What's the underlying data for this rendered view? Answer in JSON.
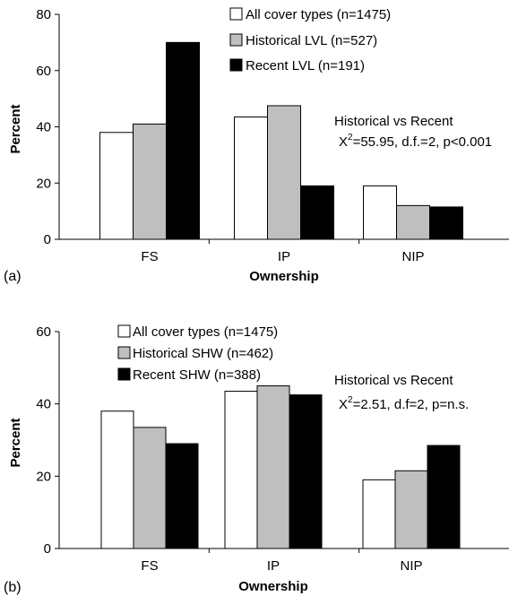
{
  "colors": {
    "all_cover": "#ffffff",
    "historical": "#bfbfbf",
    "recent": "#000000"
  },
  "chart_data": [
    {
      "type": "bar",
      "panel_label": "(a)",
      "xlabel": "Ownership",
      "ylabel": "Percent",
      "ylim": [
        0,
        80
      ],
      "yticks": [
        "0",
        "20",
        "40",
        "60",
        "80"
      ],
      "categories": [
        "FS",
        "IP",
        "NIP"
      ],
      "series": [
        {
          "name": "All cover types (n=1475)",
          "values": [
            38,
            43.5,
            19
          ]
        },
        {
          "name": "Historical LVL (n=527)",
          "values": [
            41,
            47.5,
            12
          ]
        },
        {
          "name": "Recent LVL (n=191)",
          "values": [
            70,
            19,
            11.5
          ]
        }
      ],
      "annotation": {
        "line1": "Historical vs Recent",
        "chi_symbol": "X",
        "chi_sup": "2",
        "stat": "=55.95, d.f.=2, p<0.001"
      },
      "legend_position": "top-center"
    },
    {
      "type": "bar",
      "panel_label": "(b)",
      "xlabel": "Ownership",
      "ylabel": "Percent",
      "ylim": [
        0,
        60
      ],
      "yticks": [
        "0",
        "20",
        "40",
        "60"
      ],
      "categories": [
        "FS",
        "IP",
        "NIP"
      ],
      "series": [
        {
          "name": "All cover types (n=1475)",
          "values": [
            38,
            43.5,
            19
          ]
        },
        {
          "name": "Historical SHW (n=462)",
          "values": [
            33.5,
            45,
            21.5
          ]
        },
        {
          "name": "Recent SHW (n=388)",
          "values": [
            29,
            42.5,
            28.5
          ]
        }
      ],
      "annotation": {
        "line1": "Historical vs Recent",
        "chi_symbol": "X",
        "chi_sup": "2",
        "stat": "=2.51, d.f=2, p=n.s."
      },
      "legend_position": "top-left"
    }
  ]
}
